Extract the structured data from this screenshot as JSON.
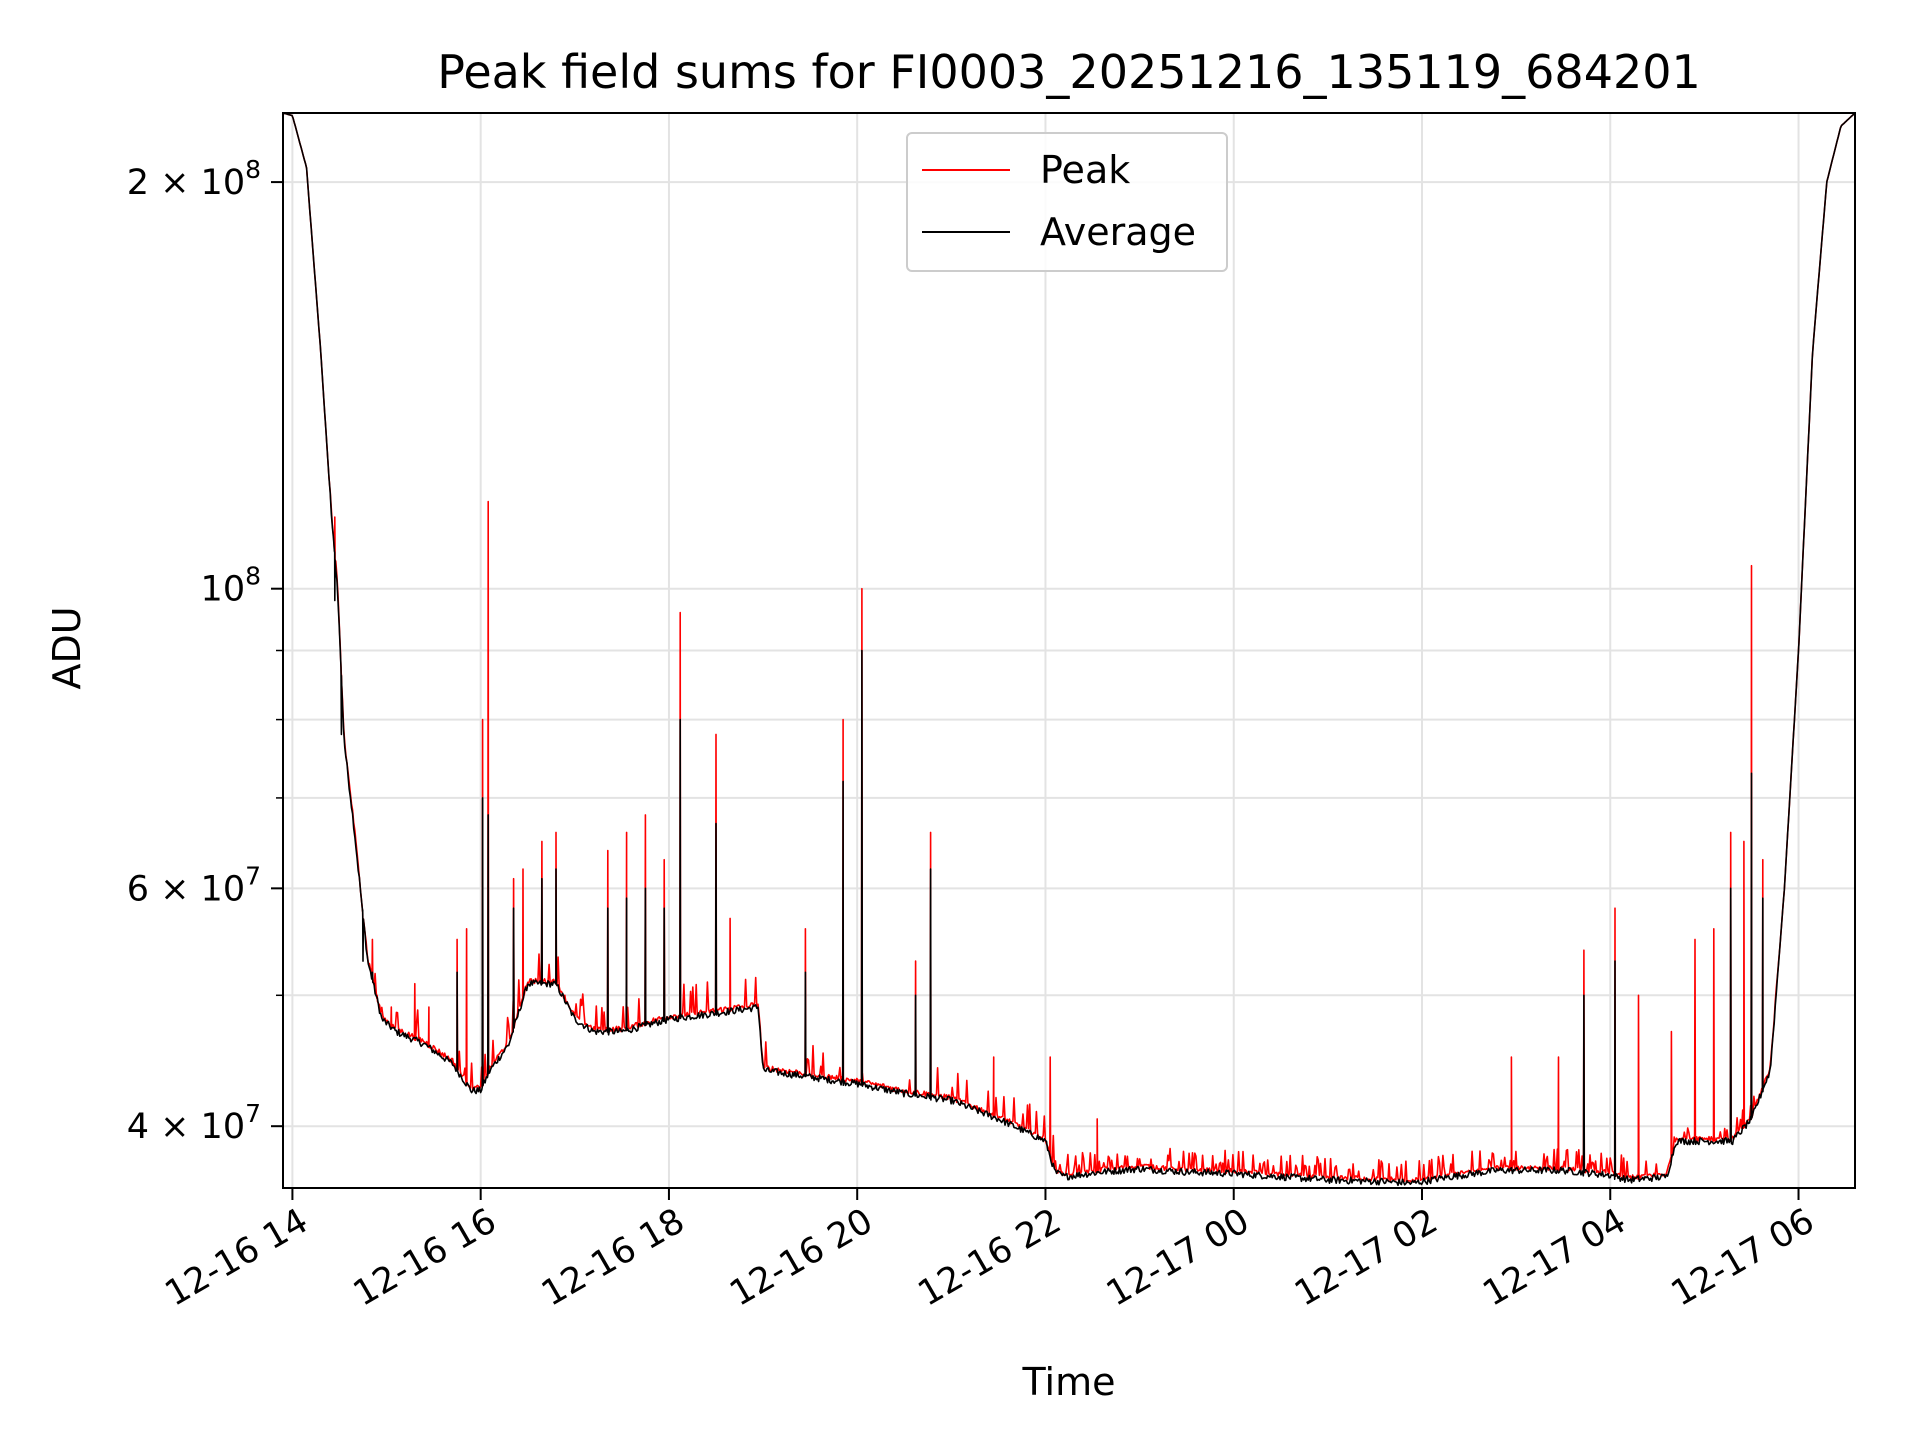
{
  "chart_data": {
    "type": "line",
    "title": "Peak field sums for FI0003_20251216_135119_684201",
    "xlabel": "Time",
    "ylabel": "ADU",
    "yscale": "log",
    "grid": true,
    "legend_position": "top-center",
    "xlim_hours": [
      -0.1,
      16.6
    ],
    "ylim": [
      36000000,
      225000000
    ],
    "x_unit": "hours since 12-16 14:00",
    "x_ticks": [
      {
        "value": 0,
        "label": "12-16 14"
      },
      {
        "value": 2,
        "label": "12-16 16"
      },
      {
        "value": 4,
        "label": "12-16 18"
      },
      {
        "value": 6,
        "label": "12-16 20"
      },
      {
        "value": 8,
        "label": "12-16 22"
      },
      {
        "value": 10,
        "label": "12-17 00"
      },
      {
        "value": 12,
        "label": "12-17 02"
      },
      {
        "value": 14,
        "label": "12-17 04"
      },
      {
        "value": 16,
        "label": "12-17 06"
      }
    ],
    "y_ticks": [
      {
        "value": 40000000,
        "mantissa": "4",
        "exponent": "7",
        "label": "4 × 10^7"
      },
      {
        "value": 60000000,
        "mantissa": "6",
        "exponent": "7",
        "label": "6 × 10^7"
      },
      {
        "value": 100000000,
        "mantissa": "",
        "exponent": "8",
        "label": "10^8"
      },
      {
        "value": 200000000,
        "mantissa": "2",
        "exponent": "8",
        "label": "2 × 10^8"
      }
    ],
    "y_minor_ticks": [
      50000000,
      70000000,
      80000000,
      90000000
    ],
    "baseline": {
      "x": [
        -0.1,
        0.0,
        0.15,
        0.3,
        0.42,
        0.48,
        0.55,
        0.65,
        0.8,
        0.95,
        1.1,
        1.4,
        1.7,
        1.9,
        2.0,
        2.1,
        2.3,
        2.5,
        2.8,
        3.0,
        3.2,
        3.5,
        4.0,
        4.5,
        4.95,
        5.0,
        5.5,
        6.0,
        6.5,
        7.0,
        7.5,
        7.9,
        8.0,
        8.1,
        8.2,
        8.6,
        9.0,
        9.5,
        10.0,
        10.5,
        11.0,
        11.6,
        11.9,
        12.3,
        12.8,
        13.5,
        14.0,
        14.2,
        14.6,
        14.7,
        15.0,
        15.3,
        15.5,
        15.7,
        15.85,
        16.0,
        16.15,
        16.3,
        16.45,
        16.6
      ],
      "y": [
        225000000,
        224000000,
        205000000,
        150000000,
        112000000,
        100000000,
        77000000,
        67000000,
        53000000,
        48000000,
        47000000,
        46000000,
        44500000,
        42500000,
        42500000,
        44000000,
        46000000,
        51000000,
        51000000,
        48000000,
        47000000,
        47000000,
        48000000,
        48500000,
        49000000,
        44000000,
        43500000,
        43000000,
        42300000,
        41800000,
        40500000,
        39300000,
        39000000,
        37000000,
        36700000,
        37000000,
        37200000,
        37000000,
        36900000,
        36700000,
        36500000,
        36400000,
        36300000,
        36700000,
        37100000,
        37100000,
        36800000,
        36500000,
        36700000,
        39000000,
        39000000,
        39000000,
        40500000,
        44000000,
        60000000,
        90000000,
        150000000,
        200000000,
        220000000,
        225000000
      ]
    },
    "series": [
      {
        "name": "Peak",
        "color": "#ff0000",
        "spikes": [
          {
            "x": 0.45,
            "y": 113000000
          },
          {
            "x": 0.52,
            "y": 86000000
          },
          {
            "x": 0.75,
            "y": 56000000
          },
          {
            "x": 0.85,
            "y": 55000000
          },
          {
            "x": 0.9,
            "y": 50000000
          },
          {
            "x": 1.05,
            "y": 49000000
          },
          {
            "x": 1.3,
            "y": 51000000
          },
          {
            "x": 1.45,
            "y": 49000000
          },
          {
            "x": 1.75,
            "y": 55000000
          },
          {
            "x": 1.85,
            "y": 56000000
          },
          {
            "x": 2.02,
            "y": 80000000
          },
          {
            "x": 2.08,
            "y": 116000000
          },
          {
            "x": 2.35,
            "y": 61000000
          },
          {
            "x": 2.45,
            "y": 62000000
          },
          {
            "x": 2.65,
            "y": 65000000
          },
          {
            "x": 2.8,
            "y": 66000000
          },
          {
            "x": 3.35,
            "y": 64000000
          },
          {
            "x": 3.55,
            "y": 66000000
          },
          {
            "x": 3.75,
            "y": 68000000
          },
          {
            "x": 3.95,
            "y": 63000000
          },
          {
            "x": 4.12,
            "y": 96000000
          },
          {
            "x": 4.5,
            "y": 78000000
          },
          {
            "x": 4.65,
            "y": 57000000
          },
          {
            "x": 5.45,
            "y": 56000000
          },
          {
            "x": 5.85,
            "y": 80000000
          },
          {
            "x": 6.05,
            "y": 100000000
          },
          {
            "x": 6.62,
            "y": 53000000
          },
          {
            "x": 6.78,
            "y": 66000000
          },
          {
            "x": 7.45,
            "y": 45000000
          },
          {
            "x": 8.05,
            "y": 45000000
          },
          {
            "x": 8.55,
            "y": 40500000
          },
          {
            "x": 12.95,
            "y": 45000000
          },
          {
            "x": 13.45,
            "y": 45000000
          },
          {
            "x": 13.72,
            "y": 54000000
          },
          {
            "x": 14.05,
            "y": 58000000
          },
          {
            "x": 14.3,
            "y": 50000000
          },
          {
            "x": 14.65,
            "y": 47000000
          },
          {
            "x": 14.9,
            "y": 55000000
          },
          {
            "x": 15.1,
            "y": 56000000
          },
          {
            "x": 15.28,
            "y": 66000000
          },
          {
            "x": 15.42,
            "y": 65000000
          },
          {
            "x": 15.5,
            "y": 104000000
          },
          {
            "x": 15.62,
            "y": 63000000
          }
        ]
      },
      {
        "name": "Average",
        "color": "#000000",
        "spikes": [
          {
            "x": 0.45,
            "y": 98000000
          },
          {
            "x": 0.52,
            "y": 78000000
          },
          {
            "x": 0.75,
            "y": 53000000
          },
          {
            "x": 0.85,
            "y": 52000000
          },
          {
            "x": 1.75,
            "y": 52000000
          },
          {
            "x": 2.02,
            "y": 70000000
          },
          {
            "x": 2.08,
            "y": 68000000
          },
          {
            "x": 2.35,
            "y": 58000000
          },
          {
            "x": 2.65,
            "y": 61000000
          },
          {
            "x": 2.8,
            "y": 62000000
          },
          {
            "x": 3.35,
            "y": 58000000
          },
          {
            "x": 3.55,
            "y": 59000000
          },
          {
            "x": 3.75,
            "y": 60000000
          },
          {
            "x": 3.95,
            "y": 58000000
          },
          {
            "x": 4.12,
            "y": 80000000
          },
          {
            "x": 4.5,
            "y": 67000000
          },
          {
            "x": 5.45,
            "y": 52000000
          },
          {
            "x": 5.85,
            "y": 72000000
          },
          {
            "x": 6.05,
            "y": 90000000
          },
          {
            "x": 6.62,
            "y": 50000000
          },
          {
            "x": 6.78,
            "y": 62000000
          },
          {
            "x": 13.72,
            "y": 50000000
          },
          {
            "x": 14.05,
            "y": 53000000
          },
          {
            "x": 15.28,
            "y": 60000000
          },
          {
            "x": 15.5,
            "y": 73000000
          },
          {
            "x": 15.62,
            "y": 59000000
          }
        ]
      }
    ]
  }
}
